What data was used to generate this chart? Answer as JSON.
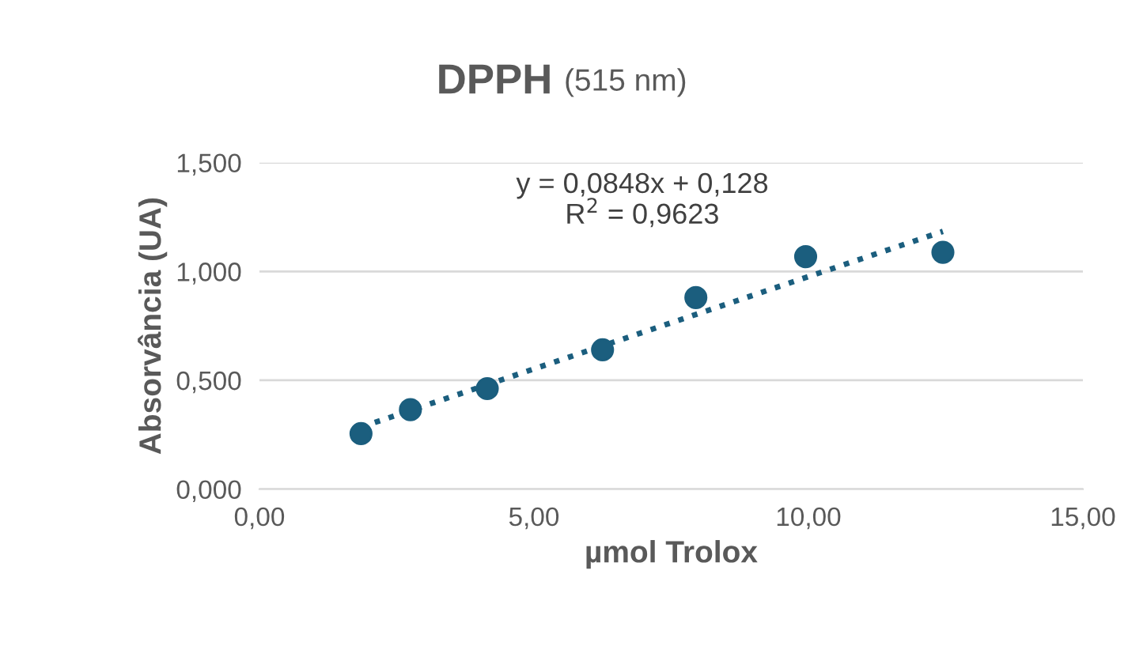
{
  "chart_data": {
    "type": "scatter",
    "title": "DPPH",
    "subtitle": "(515 nm)",
    "xlabel": "µmol Trolox",
    "ylabel": "Absorvância (UA)",
    "annotations": [
      "y = 0,0848x + 0,128",
      "R$^{2}$ = 0,9623"
    ],
    "series": [
      {
        "color": "#1b5e7e",
        "x": [
          1.85,
          2.75,
          4.15,
          6.25,
          7.95,
          9.95,
          12.45
        ],
        "values": [
          0.255,
          0.365,
          0.462,
          0.64,
          0.88,
          1.068,
          1.088
        ],
        "marker": "circle"
      },
      {
        "type": "line",
        "color": "#1b5e7e",
        "x": [
          1.85,
          12.45
        ],
        "values": [
          0.285,
          1.184
        ],
        "line_style": "dotted",
        "marker": "none"
      }
    ],
    "xlim": [
      0,
      15
    ],
    "xticks": [
      {
        "value": 0,
        "label": "0,00"
      },
      {
        "value": 5,
        "label": "5,00"
      },
      {
        "value": 10,
        "label": "10,00"
      },
      {
        "value": 15,
        "label": "15,00"
      }
    ],
    "ylim": [
      0,
      1.5
    ],
    "yticks": [
      {
        "value": 0,
        "label": "0,000"
      },
      {
        "value": 0.5,
        "label": "0,500"
      },
      {
        "value": 1,
        "label": "1,000"
      },
      {
        "value": 1.5,
        "label": "1,500"
      }
    ],
    "grid": "y",
    "legend": false
  }
}
